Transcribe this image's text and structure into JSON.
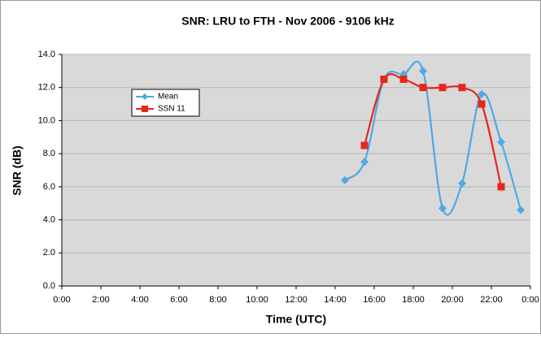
{
  "chart_data": {
    "type": "line",
    "title": "SNR:  LRU to FTH - Nov 2006 - 9106 kHz",
    "x_label": "Time (UTC)",
    "y_label": "SNR (dB)",
    "x": [
      14.5,
      15.5,
      16.5,
      17.5,
      18.5,
      19.5,
      20.5,
      21.5,
      22.5,
      23.5
    ],
    "series": [
      {
        "name": "Mean",
        "color": "#4ea9e6",
        "marker": "diamond",
        "values": [
          6.4,
          7.5,
          12.5,
          12.8,
          13.0,
          4.7,
          6.2,
          11.6,
          8.7,
          4.6
        ]
      },
      {
        "name": "SSN 11",
        "color": "#e8261c",
        "marker": "square",
        "values": [
          null,
          8.5,
          12.5,
          12.5,
          12.0,
          12.0,
          12.0,
          11.0,
          6.0,
          null
        ]
      }
    ],
    "xlim": [
      0,
      24
    ],
    "xticks": [
      {
        "value": 0,
        "label": "0:00"
      },
      {
        "value": 2,
        "label": "2:00"
      },
      {
        "value": 4,
        "label": "4:00"
      },
      {
        "value": 6,
        "label": "6:00"
      },
      {
        "value": 8,
        "label": "8:00"
      },
      {
        "value": 10,
        "label": "10:00"
      },
      {
        "value": 12,
        "label": "12:00"
      },
      {
        "value": 14,
        "label": "14:00"
      },
      {
        "value": 16,
        "label": "16:00"
      },
      {
        "value": 18,
        "label": "18:00"
      },
      {
        "value": 20,
        "label": "20:00"
      },
      {
        "value": 22,
        "label": "22:00"
      },
      {
        "value": 24,
        "label": "0:00"
      }
    ],
    "ylim": [
      0,
      14
    ],
    "yticks": [
      {
        "value": 0,
        "label": "0.0"
      },
      {
        "value": 2,
        "label": "2.0"
      },
      {
        "value": 4,
        "label": "4.0"
      },
      {
        "value": 6,
        "label": "6.0"
      },
      {
        "value": 8,
        "label": "8.0"
      },
      {
        "value": 10,
        "label": "10.0"
      },
      {
        "value": 12,
        "label": "12.0"
      },
      {
        "value": 14,
        "label": "14.0"
      }
    ],
    "grid": true,
    "legend": "upper left"
  }
}
